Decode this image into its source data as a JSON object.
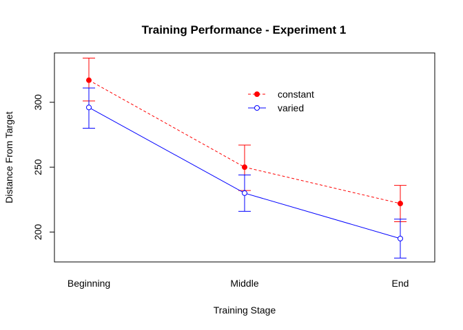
{
  "chart_data": {
    "type": "line",
    "title": "Training Performance - Experiment 1",
    "xlabel": "Training Stage",
    "ylabel": "Distance From Target",
    "categories": [
      "Beginning",
      "Middle",
      "End"
    ],
    "ylim": [
      177,
      338
    ],
    "yticks": [
      200,
      250,
      300
    ],
    "grid": false,
    "legend_position": "top-right",
    "series": [
      {
        "name": "constant",
        "color": "#ff0000",
        "line_style": "dashed",
        "marker": "filled-circle",
        "values": [
          317,
          250,
          222
        ],
        "error_low": [
          301,
          232,
          208
        ],
        "error_high": [
          334,
          267,
          236
        ]
      },
      {
        "name": "varied",
        "color": "#0000ff",
        "line_style": "solid",
        "marker": "open-circle",
        "values": [
          296,
          230,
          195
        ],
        "error_low": [
          280,
          216,
          180
        ],
        "error_high": [
          311,
          244,
          210
        ]
      }
    ]
  }
}
